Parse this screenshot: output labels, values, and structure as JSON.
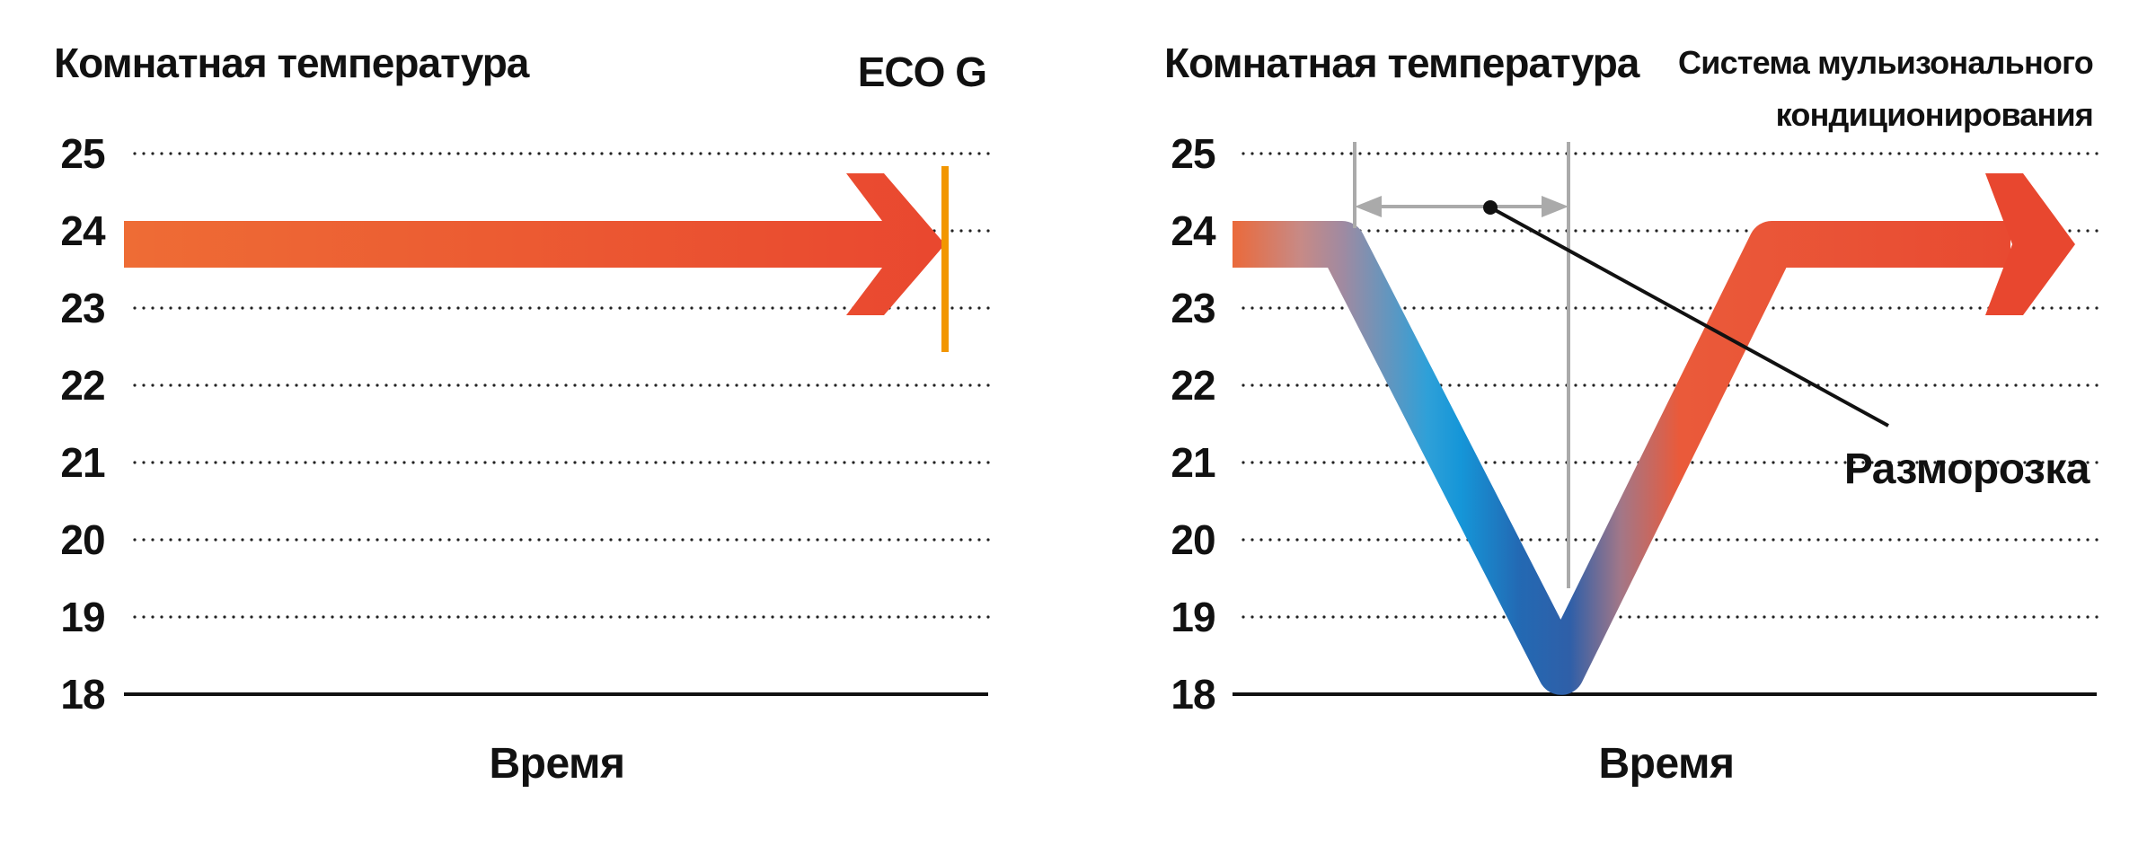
{
  "chart_data": [
    {
      "type": "line",
      "title": "Комнатная температура",
      "brand": "ECO G",
      "xlabel": "Время",
      "ylabel": "",
      "y_ticks": [
        "25",
        "24",
        "23",
        "22",
        "21",
        "20",
        "19",
        "18"
      ],
      "ylim": [
        18,
        25
      ],
      "grid": "dotted horizontal",
      "series": [
        {
          "points": [
            {
              "t": 0,
              "y": 24
            },
            {
              "t": 1,
              "y": 24
            }
          ]
        }
      ],
      "colors": {
        "arrow": "#ea5532",
        "marker": "#f29600"
      }
    },
    {
      "type": "line",
      "title": "Комнатная температура",
      "system_label_lines": [
        "Система мульизонального",
        "кондиционирования"
      ],
      "annotation": "Разморозка",
      "xlabel": "Время",
      "ylabel": "",
      "y_ticks": [
        "25",
        "24",
        "23",
        "22",
        "21",
        "20",
        "19",
        "18"
      ],
      "ylim": [
        18,
        25
      ],
      "grid": "dotted horizontal",
      "series": [
        {
          "points": [
            {
              "t": 0,
              "y": 24
            },
            {
              "t": 0.13,
              "y": 24
            },
            {
              "t": 0.39,
              "y": 18.2
            },
            {
              "t": 0.64,
              "y": 24
            },
            {
              "t": 1,
              "y": 24
            }
          ]
        }
      ],
      "colors": {
        "warm": "#ea5532",
        "cold": "#0096db",
        "interval": "#aaaaaa"
      }
    }
  ]
}
